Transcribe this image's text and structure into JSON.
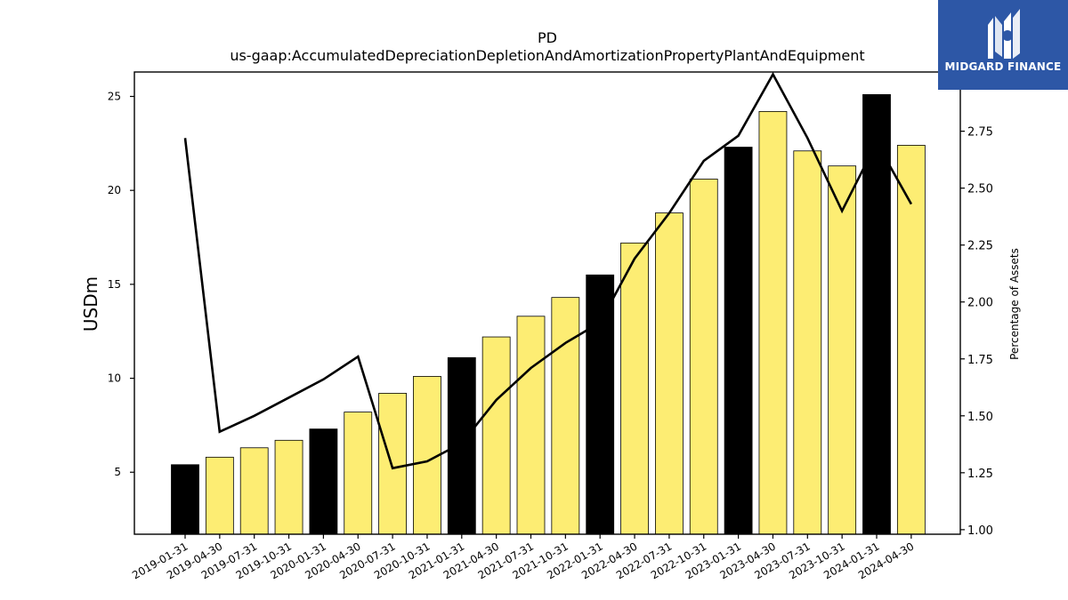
{
  "chart_data": {
    "type": "bar",
    "title": "PD",
    "subtitle": "us-gaap:AccumulatedDepreciationDepletionAndAmortizationPropertyPlantAndEquipment",
    "ylabel": "USDm",
    "y2label": "Percentage of Assets",
    "ylim": [
      1.7,
      26.3
    ],
    "y2lim": [
      0.98,
      3.01
    ],
    "yticks": [
      5,
      10,
      15,
      20,
      25
    ],
    "y2ticks": [
      "1.00",
      "1.25",
      "1.50",
      "1.75",
      "2.00",
      "2.25",
      "2.50",
      "2.75"
    ],
    "grid": false,
    "categories": [
      "2019-01-31",
      "2019-04-30",
      "2019-07-31",
      "2019-10-31",
      "2020-01-31",
      "2020-04-30",
      "2020-07-31",
      "2020-10-31",
      "2021-01-31",
      "2021-04-30",
      "2021-07-31",
      "2021-10-31",
      "2022-01-31",
      "2022-04-30",
      "2022-07-31",
      "2022-10-31",
      "2023-01-31",
      "2023-04-30",
      "2023-07-31",
      "2023-10-31",
      "2024-01-31",
      "2024-04-30"
    ],
    "series": [
      {
        "kind": "bar",
        "values": [
          5.4,
          5.8,
          6.3,
          6.7,
          7.3,
          8.2,
          9.2,
          10.1,
          11.1,
          12.2,
          13.3,
          14.3,
          15.5,
          17.2,
          18.8,
          20.6,
          22.3,
          24.2,
          22.1,
          21.3,
          25.1,
          22.4
        ],
        "colors": [
          "#000000",
          "#fded73",
          "#fded73",
          "#fded73",
          "#000000",
          "#fded73",
          "#fded73",
          "#fded73",
          "#000000",
          "#fded73",
          "#fded73",
          "#fded73",
          "#000000",
          "#fded73",
          "#fded73",
          "#fded73",
          "#000000",
          "#fded73",
          "#fded73",
          "#fded73",
          "#000000",
          "#fded73"
        ]
      },
      {
        "kind": "line",
        "axis": "right",
        "values": [
          2.72,
          1.43,
          1.5,
          1.58,
          1.66,
          1.76,
          1.27,
          1.3,
          1.38,
          1.57,
          1.71,
          1.82,
          1.91,
          2.19,
          2.39,
          2.62,
          2.73,
          3.0,
          2.72,
          2.4,
          2.7,
          2.43
        ],
        "color": "#000000"
      }
    ]
  },
  "logo": {
    "text": "MIDGARD FINANCE",
    "bg": "#2d57a6",
    "fg": "#ffffff"
  }
}
